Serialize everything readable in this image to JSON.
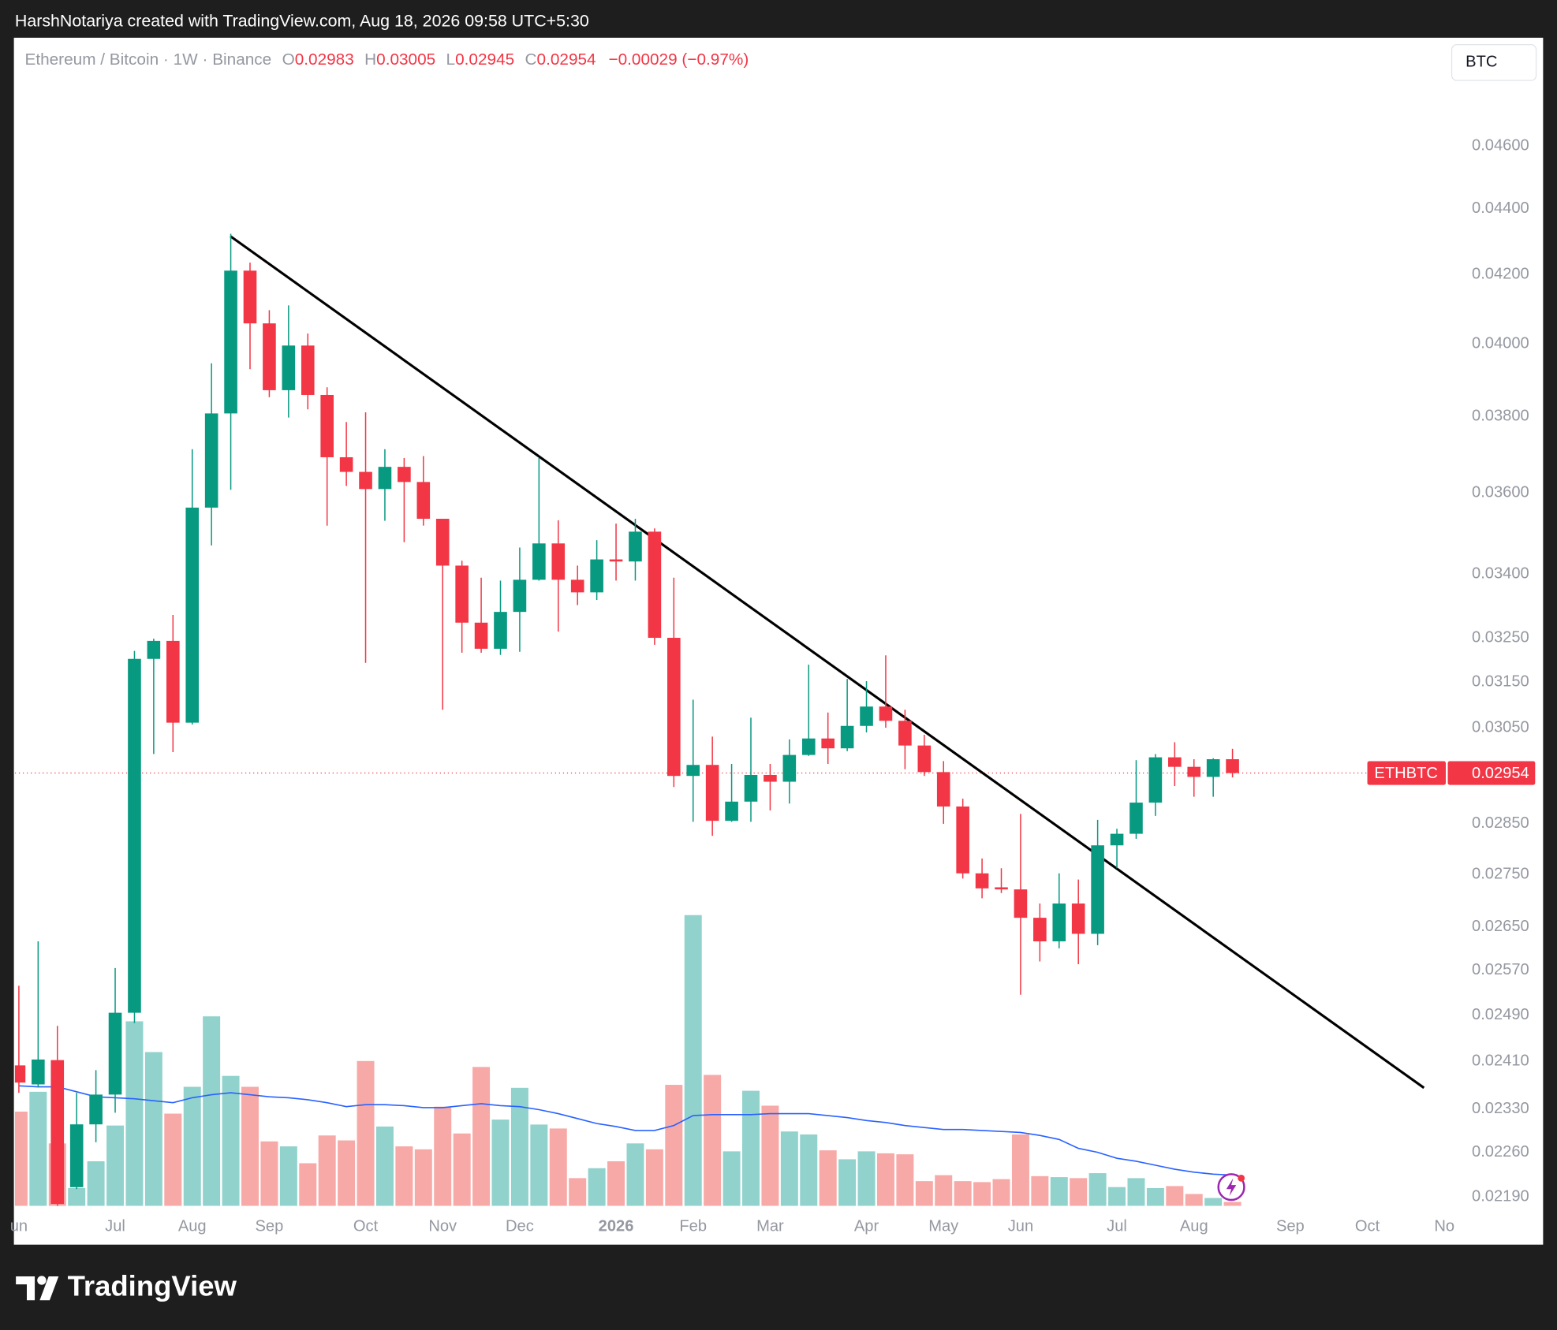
{
  "header": {
    "byline": "HarshNotariya created with TradingView.com, Aug 18, 2026 09:58 UTC+5:30"
  },
  "chart_data": {
    "type": "candlestick",
    "title": "Ethereum / Bitcoin · 1W · Binance",
    "symbol": "ETHBTC",
    "currency": "BTC",
    "ohlc_letters": [
      "O",
      "H",
      "L",
      "C"
    ],
    "change": "−0.00029 (−0.97%)",
    "log": true,
    "grid": false,
    "up_color": "#089981",
    "down_color": "#f23645",
    "categories": [
      "un",
      null,
      null,
      null,
      null,
      "Jul",
      null,
      null,
      null,
      "Aug",
      null,
      null,
      null,
      "Sep",
      null,
      null,
      null,
      null,
      "Oct",
      null,
      null,
      null,
      "Nov",
      null,
      null,
      null,
      "Dec",
      null,
      null,
      null,
      null,
      "2026",
      null,
      null,
      null,
      "Feb",
      null,
      null,
      null,
      "Mar",
      null,
      null,
      null,
      null,
      "Apr",
      null,
      null,
      null,
      "May",
      null,
      null,
      null,
      "Jun",
      null,
      null,
      null,
      null,
      "Jul",
      null,
      null,
      null,
      "Aug",
      null,
      null,
      null,
      null,
      "Sep",
      null,
      null,
      null,
      "Oct",
      null,
      null,
      null,
      "No"
    ],
    "open": [
      0.02403,
      0.02371,
      0.02412,
      0.02205,
      0.02305,
      0.02354,
      0.02494,
      0.03202,
      0.03243,
      0.03061,
      0.03563,
      0.03808,
      0.04212,
      0.04058,
      0.03871,
      0.03995,
      0.03858,
      0.03692,
      0.03654,
      0.0361,
      0.03667,
      0.03628,
      0.03535,
      0.0342,
      0.03285,
      0.03225,
      0.0331,
      0.03386,
      0.03474,
      0.03386,
      0.03356,
      0.03435,
      0.0343,
      0.03503,
      0.0325,
      0.02948,
      0.02971,
      0.02856,
      0.02895,
      0.0295,
      0.02936,
      0.02992,
      0.03027,
      0.03006,
      0.03054,
      0.03096,
      0.03065,
      0.03012,
      0.02956,
      0.02885,
      0.02752,
      0.02725,
      0.02721,
      0.02667,
      0.02623,
      0.02694,
      0.02637,
      0.02807,
      0.0283,
      0.02893,
      0.02987,
      0.02967,
      0.02946,
      0.02983,
      null,
      null,
      null,
      null,
      null,
      null,
      null,
      null,
      null,
      null,
      null
    ],
    "high": [
      0.02542,
      0.02623,
      0.02471,
      0.02357,
      0.02395,
      0.02574,
      0.0322,
      0.03248,
      0.03303,
      0.03713,
      0.03945,
      0.04323,
      0.04236,
      0.04096,
      0.0411,
      0.04029,
      0.03879,
      0.03785,
      0.03811,
      0.03713,
      0.0369,
      0.03695,
      0.03535,
      0.03432,
      0.03391,
      0.03384,
      0.03464,
      0.0369,
      0.03531,
      0.0342,
      0.03482,
      0.03523,
      0.03535,
      0.03511,
      0.03391,
      0.03111,
      0.03031,
      0.02973,
      0.03072,
      0.02973,
      0.03025,
      0.03189,
      0.03083,
      0.03157,
      0.03152,
      0.0321,
      0.03089,
      0.03035,
      0.02979,
      0.02901,
      0.02781,
      0.02762,
      0.0287,
      0.02694,
      0.02752,
      0.0274,
      0.02858,
      0.0284,
      0.02981,
      0.02994,
      0.03019,
      0.02983,
      0.02985,
      0.03005,
      null,
      null,
      null,
      null,
      null,
      null,
      null,
      null,
      null,
      null,
      null
    ],
    "low": [
      0.02357,
      0.02366,
      0.02175,
      0.02202,
      0.02276,
      0.02324,
      0.02476,
      0.02994,
      0.02998,
      0.03057,
      0.03469,
      0.03608,
      0.03929,
      0.03852,
      0.03797,
      0.03819,
      0.03518,
      0.03618,
      0.03193,
      0.0353,
      0.03477,
      0.03518,
      0.03089,
      0.03216,
      0.03216,
      0.03211,
      0.03218,
      0.03384,
      0.03264,
      0.03326,
      0.03338,
      0.03384,
      0.03384,
      0.03234,
      0.02925,
      0.02854,
      0.02826,
      0.02854,
      0.02854,
      0.02877,
      0.02891,
      0.0299,
      0.02973,
      0.03,
      0.0304,
      0.0305,
      0.02962,
      0.02948,
      0.0285,
      0.02742,
      0.02704,
      0.02714,
      0.02526,
      0.02586,
      0.0261,
      0.02581,
      0.02616,
      0.02762,
      0.0282,
      0.02866,
      0.02927,
      0.02905,
      0.02905,
      0.02945,
      null,
      null,
      null,
      null,
      null,
      null,
      null,
      null,
      null,
      null,
      null
    ],
    "close": [
      0.02374,
      0.02413,
      0.02179,
      0.02305,
      0.02354,
      0.02494,
      0.03202,
      0.03243,
      0.03061,
      0.03563,
      0.03808,
      0.04212,
      0.04058,
      0.03871,
      0.03995,
      0.03858,
      0.03692,
      0.03654,
      0.0361,
      0.03667,
      0.03628,
      0.03535,
      0.0342,
      0.03285,
      0.03225,
      0.0331,
      0.03386,
      0.03474,
      0.03386,
      0.03356,
      0.03435,
      0.0343,
      0.03503,
      0.0325,
      0.02948,
      0.02971,
      0.02856,
      0.02895,
      0.0295,
      0.02936,
      0.02992,
      0.03027,
      0.03006,
      0.03054,
      0.03096,
      0.03065,
      0.03012,
      0.02956,
      0.02885,
      0.02752,
      0.02723,
      0.02721,
      0.02667,
      0.02623,
      0.02694,
      0.02637,
      0.02807,
      0.0283,
      0.02893,
      0.02987,
      0.02967,
      0.02946,
      0.02983,
      0.02954,
      null,
      null,
      null,
      null,
      null,
      null,
      null,
      null,
      null,
      null,
      null
    ],
    "volume": {
      "up_color": "#92d2cc",
      "down_color": "#f7a9a7",
      "ma_color": "#2962ff",
      "values": [
        95,
        115,
        63,
        18,
        45,
        81,
        186,
        155,
        93,
        120,
        191,
        131,
        120,
        65,
        60,
        43,
        71,
        66,
        146,
        80,
        60,
        57,
        100,
        73,
        140,
        87,
        119,
        82,
        78,
        28,
        38,
        45,
        63,
        57,
        122,
        293,
        132,
        55,
        116,
        101,
        75,
        72,
        56,
        47,
        55,
        53,
        52,
        25,
        31,
        25,
        24,
        27,
        72,
        30,
        29,
        28,
        33,
        19,
        28,
        18,
        20,
        12,
        8,
        4,
        null,
        null,
        null,
        null,
        null,
        null,
        null,
        null,
        null,
        null,
        null
      ],
      "ma": [
        121,
        120,
        120,
        115,
        110,
        109,
        108,
        106,
        104,
        109,
        112,
        114,
        112,
        110,
        109,
        107,
        104,
        100,
        102,
        102,
        101,
        99,
        99,
        101,
        103,
        101,
        100,
        97,
        93,
        88,
        83,
        80,
        76,
        76,
        81,
        91,
        92,
        92,
        92,
        93,
        93,
        93,
        91,
        89,
        86,
        84,
        81,
        79,
        77,
        77,
        76,
        75,
        74,
        71,
        67,
        58,
        54,
        48,
        45,
        41,
        37,
        34,
        32,
        31,
        null,
        null,
        null,
        null,
        null,
        null,
        null,
        null,
        null,
        null,
        null
      ],
      "ylim": [
        0,
        1175
      ]
    },
    "ylim": [
      0.02176,
      0.04958
    ],
    "yticks": [
      {
        "value": 0.046,
        "label": "0.04600"
      },
      {
        "value": 0.044,
        "label": "0.04400"
      },
      {
        "value": 0.042,
        "label": "0.04200"
      },
      {
        "value": 0.04,
        "label": "0.04000"
      },
      {
        "value": 0.038,
        "label": "0.03800"
      },
      {
        "value": 0.036,
        "label": "0.03600"
      },
      {
        "value": 0.034,
        "label": "0.03400"
      },
      {
        "value": 0.0325,
        "label": "0.03250"
      },
      {
        "value": 0.0315,
        "label": "0.03150"
      },
      {
        "value": 0.0305,
        "label": "0.03050"
      },
      {
        "value": 0.0285,
        "label": "0.02850"
      },
      {
        "value": 0.0275,
        "label": "0.02750"
      },
      {
        "value": 0.0265,
        "label": "0.02650"
      },
      {
        "value": 0.0257,
        "label": "0.02570"
      },
      {
        "value": 0.0249,
        "label": "0.02490"
      },
      {
        "value": 0.0241,
        "label": "0.02410"
      },
      {
        "value": 0.0233,
        "label": "0.02330"
      },
      {
        "value": 0.0226,
        "label": "0.02260"
      },
      {
        "value": 0.0219,
        "label": "0.02190"
      }
    ]
  },
  "footer": {
    "brand": "TradingView"
  }
}
